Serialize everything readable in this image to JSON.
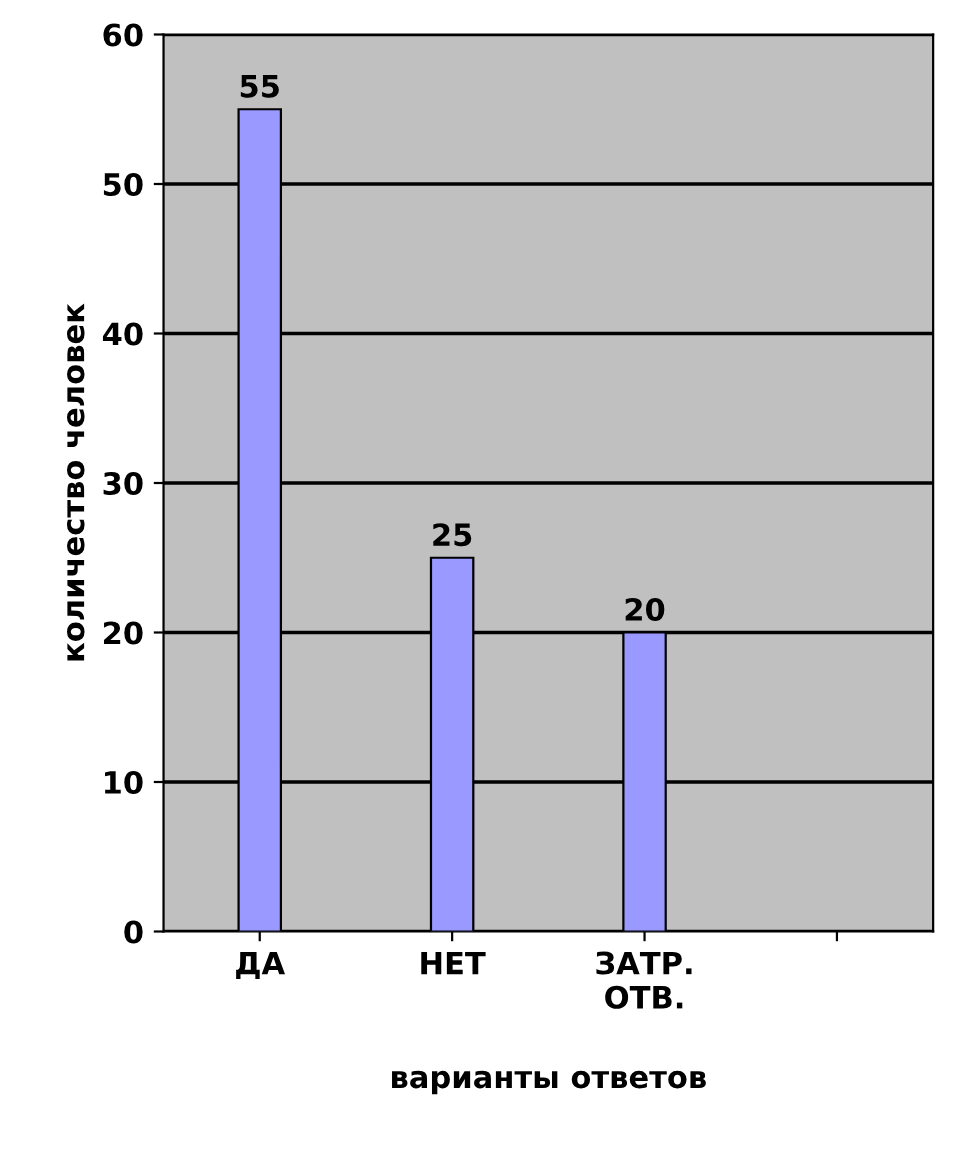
{
  "chart_data": {
    "type": "bar",
    "xlabel": "варианты ответов",
    "ylabel": "количество человек",
    "categories": [
      "ДА",
      "НЕТ",
      "ЗАТР.\nОТВ.",
      null
    ],
    "values": [
      55,
      25,
      20,
      null
    ],
    "color": "#9999ff",
    "ylim": [
      0,
      60
    ],
    "yticks": [
      0,
      10,
      20,
      30,
      40,
      50,
      60
    ],
    "grid": "y",
    "data_labels": true
  }
}
